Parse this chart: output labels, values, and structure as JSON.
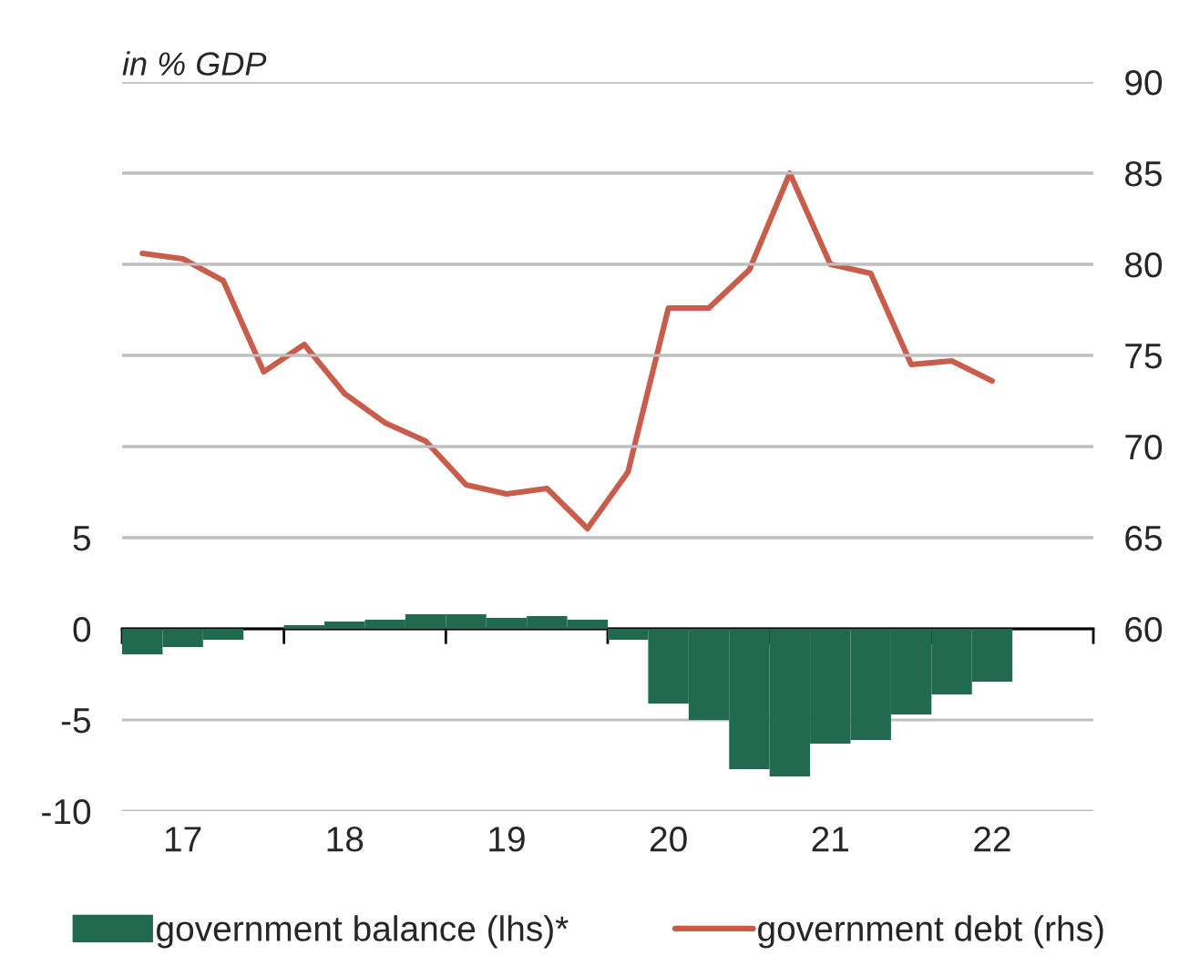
{
  "chart_data": {
    "type": "bar",
    "ylabel": "in % GDP",
    "categories": [
      null,
      "17",
      null,
      null,
      null,
      "18",
      null,
      null,
      null,
      "19",
      null,
      null,
      null,
      "20",
      null,
      null,
      null,
      "21",
      null,
      null,
      null,
      "22",
      null,
      null
    ],
    "series": [
      {
        "name": "government balance (lhs)*",
        "color": "#216a50",
        "values": [
          -1.4,
          -1.0,
          -0.6,
          0.0,
          0.2,
          0.4,
          0.5,
          0.8,
          0.8,
          0.6,
          0.7,
          0.5,
          -0.6,
          -4.1,
          -5.0,
          -7.7,
          -8.1,
          -6.3,
          -6.1,
          -4.7,
          -3.6,
          -2.9,
          null,
          null
        ]
      },
      {
        "name": "government debt (rhs)",
        "type": "line",
        "axis": "y2",
        "color": "#c95d4c",
        "values": [
          80.6,
          80.3,
          79.1,
          74.1,
          75.6,
          72.9,
          71.3,
          70.3,
          67.9,
          67.4,
          67.7,
          65.5,
          68.6,
          77.6,
          77.6,
          79.7,
          85.0,
          80.0,
          79.5,
          74.5,
          74.7,
          73.6,
          null,
          null
        ]
      }
    ],
    "ylim": [
      -10,
      30
    ],
    "yticks": [
      -10,
      -5,
      0,
      5,
      {
        "value": 10,
        "label": null
      },
      {
        "value": 15,
        "label": null
      },
      {
        "value": 20,
        "label": null
      },
      {
        "value": 25,
        "label": null
      },
      {
        "value": 30,
        "label": null
      }
    ],
    "y2lim": [
      50,
      90
    ],
    "y2ticks": [
      60,
      65,
      70,
      75,
      80,
      85,
      90
    ],
    "grid": "y",
    "legend": "bottom",
    "marker": "none",
    "line_style": "solid"
  }
}
